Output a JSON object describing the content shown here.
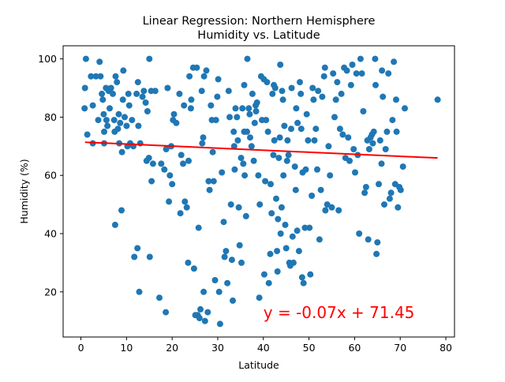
{
  "chart_data": {
    "type": "scatter",
    "title": "Linear Regression: Northern Hemisphere",
    "subtitle": "Humidity vs. Latitude",
    "xlabel": "Latitude",
    "ylabel": "Humidity (%)",
    "xlim": [
      -3.9,
      81.9
    ],
    "ylim": [
      4.5,
      104.5
    ],
    "xticks": [
      0,
      10,
      20,
      30,
      40,
      50,
      60,
      70,
      80
    ],
    "yticks": [
      20,
      40,
      60,
      80,
      100
    ],
    "grid": false,
    "marker_color": "#1f77b4",
    "line_color": "#ff0000",
    "regression": {
      "slope": -0.07,
      "intercept": 71.45,
      "x_range": [
        0.9,
        78.2
      ],
      "equation_label": "y = -0.07x + 71.45",
      "label_at": [
        40,
        11
      ]
    },
    "series": [
      {
        "points": [
          [
            1.1,
            100
          ],
          [
            0.9,
            90
          ],
          [
            0.8,
            83
          ],
          [
            1.4,
            74
          ],
          [
            2.2,
            94
          ],
          [
            2.6,
            84
          ],
          [
            2.6,
            71
          ],
          [
            3.3,
            94
          ],
          [
            3.8,
            79
          ],
          [
            4.1,
            99
          ],
          [
            4.3,
            94
          ],
          [
            4.6,
            88
          ],
          [
            4.8,
            86
          ],
          [
            5.0,
            81
          ],
          [
            5.1,
            75
          ],
          [
            5.1,
            71
          ],
          [
            5.5,
            90
          ],
          [
            5.6,
            79
          ],
          [
            5.8,
            77
          ],
          [
            6.1,
            89
          ],
          [
            6.3,
            83
          ],
          [
            6.6,
            90
          ],
          [
            7.0,
            88
          ],
          [
            7.3,
            79
          ],
          [
            7.4,
            75
          ],
          [
            7.5,
            43
          ],
          [
            7.6,
            94
          ],
          [
            7.9,
            92
          ],
          [
            8.1,
            76
          ],
          [
            8.3,
            81
          ],
          [
            8.4,
            71
          ],
          [
            8.6,
            78
          ],
          [
            8.9,
            48
          ],
          [
            9.0,
            68
          ],
          [
            9.2,
            86
          ],
          [
            9.3,
            96
          ],
          [
            9.6,
            80
          ],
          [
            10.0,
            77
          ],
          [
            10.2,
            70
          ],
          [
            10.4,
            88
          ],
          [
            10.6,
            84
          ],
          [
            10.8,
            71
          ],
          [
            11.2,
            79
          ],
          [
            11.5,
            70
          ],
          [
            11.7,
            32
          ],
          [
            12.2,
            88
          ],
          [
            12.4,
            35
          ],
          [
            12.5,
            92
          ],
          [
            12.6,
            77
          ],
          [
            12.8,
            20
          ],
          [
            13.0,
            71
          ],
          [
            13.5,
            87
          ],
          [
            13.8,
            89
          ],
          [
            14.2,
            85
          ],
          [
            14.4,
            65
          ],
          [
            14.6,
            82
          ],
          [
            14.9,
            66
          ],
          [
            15.0,
            100
          ],
          [
            15.1,
            32
          ],
          [
            15.4,
            89
          ],
          [
            15.8,
            64
          ],
          [
            16.3,
            89
          ],
          [
            17.2,
            18
          ],
          [
            17.6,
            64
          ],
          [
            18.3,
            62
          ],
          [
            18.6,
            13
          ],
          [
            18.7,
            69
          ],
          [
            19.0,
            90
          ],
          [
            19.3,
            51
          ],
          [
            19.5,
            60
          ],
          [
            19.8,
            70
          ],
          [
            20.0,
            57
          ],
          [
            20.2,
            79
          ],
          [
            20.4,
            81
          ],
          [
            20.9,
            78
          ],
          [
            21.6,
            88
          ],
          [
            21.8,
            47
          ],
          [
            22.0,
            67
          ],
          [
            22.4,
            64
          ],
          [
            22.6,
            84
          ],
          [
            22.8,
            51
          ],
          [
            23.2,
            49
          ],
          [
            23.5,
            30
          ],
          [
            23.6,
            65
          ],
          [
            23.8,
            94
          ],
          [
            24.1,
            83
          ],
          [
            24.2,
            86
          ],
          [
            24.6,
            97
          ],
          [
            24.8,
            28
          ],
          [
            25.1,
            12
          ],
          [
            25.4,
            97
          ],
          [
            25.6,
            12
          ],
          [
            25.8,
            42
          ],
          [
            26.0,
            11
          ],
          [
            26.2,
            14
          ],
          [
            26.5,
            89
          ],
          [
            26.6,
            71
          ],
          [
            26.8,
            73
          ],
          [
            27.0,
            94
          ],
          [
            27.2,
            10
          ],
          [
            27.5,
            96
          ],
          [
            27.8,
            13
          ],
          [
            28.0,
            58
          ],
          [
            28.2,
            55
          ],
          [
            28.5,
            84
          ],
          [
            28.7,
            79
          ],
          [
            28.9,
            68
          ],
          [
            29.1,
            58
          ],
          [
            29.4,
            24
          ],
          [
            29.6,
            79
          ],
          [
            29.9,
            87
          ],
          [
            30.1,
            93
          ],
          [
            30.3,
            20
          ],
          [
            30.5,
            9
          ],
          [
            30.9,
            61
          ],
          [
            31.3,
            44
          ],
          [
            31.5,
            32
          ],
          [
            31.8,
            34
          ],
          [
            32.1,
            23
          ],
          [
            32.4,
            89
          ],
          [
            32.6,
            80
          ],
          [
            32.9,
            50
          ],
          [
            33.1,
            31
          ],
          [
            33.3,
            17
          ],
          [
            33.5,
            75
          ],
          [
            33.6,
            70
          ],
          [
            33.7,
            62
          ],
          [
            33.9,
            83
          ],
          [
            34.2,
            80
          ],
          [
            34.4,
            72
          ],
          [
            34.6,
            49
          ],
          [
            34.8,
            36
          ],
          [
            35.1,
            66
          ],
          [
            35.2,
            30
          ],
          [
            35.4,
            83
          ],
          [
            35.6,
            64
          ],
          [
            35.8,
            75
          ],
          [
            35.9,
            60
          ],
          [
            36.2,
            46
          ],
          [
            36.4,
            75
          ],
          [
            36.5,
            100
          ],
          [
            36.8,
            83
          ],
          [
            37.0,
            81
          ],
          [
            37.1,
            73
          ],
          [
            37.4,
            70
          ],
          [
            37.6,
            88
          ],
          [
            37.9,
            65
          ],
          [
            38.1,
            78
          ],
          [
            38.3,
            84
          ],
          [
            38.4,
            82
          ],
          [
            38.6,
            85
          ],
          [
            38.9,
            60
          ],
          [
            39.1,
            18
          ],
          [
            39.2,
            50
          ],
          [
            39.5,
            94
          ],
          [
            39.7,
            79
          ],
          [
            40.1,
            93
          ],
          [
            40.2,
            26
          ],
          [
            40.4,
            58
          ],
          [
            40.6,
            79
          ],
          [
            40.8,
            92
          ],
          [
            41.0,
            75
          ],
          [
            41.2,
            23
          ],
          [
            41.5,
            33
          ],
          [
            41.6,
            57
          ],
          [
            41.8,
            47
          ],
          [
            42.0,
            88
          ],
          [
            42.2,
            67
          ],
          [
            42.3,
            91
          ],
          [
            42.6,
            90
          ],
          [
            42.8,
            52
          ],
          [
            43.0,
            34
          ],
          [
            43.1,
            27
          ],
          [
            43.2,
            45
          ],
          [
            43.4,
            66
          ],
          [
            43.6,
            73
          ],
          [
            43.7,
            98
          ],
          [
            43.8,
            40
          ],
          [
            44.0,
            49
          ],
          [
            44.1,
            89
          ],
          [
            44.3,
            86
          ],
          [
            44.4,
            60
          ],
          [
            44.6,
            77
          ],
          [
            44.8,
            43
          ],
          [
            45.0,
            35
          ],
          [
            45.2,
            65
          ],
          [
            45.3,
            72
          ],
          [
            45.5,
            67
          ],
          [
            45.7,
            30
          ],
          [
            45.9,
            29
          ],
          [
            46.1,
            76
          ],
          [
            46.2,
            90
          ],
          [
            46.4,
            39
          ],
          [
            46.6,
            30
          ],
          [
            46.9,
            63
          ],
          [
            47.1,
            55
          ],
          [
            47.2,
            83
          ],
          [
            47.4,
            41
          ],
          [
            47.5,
            78
          ],
          [
            47.8,
            34
          ],
          [
            48.0,
            92
          ],
          [
            48.2,
            88
          ],
          [
            48.3,
            76
          ],
          [
            48.5,
            25
          ],
          [
            48.6,
            61
          ],
          [
            48.8,
            23
          ],
          [
            49.1,
            42
          ],
          [
            49.3,
            62
          ],
          [
            49.5,
            81
          ],
          [
            49.8,
            72
          ],
          [
            50.1,
            42
          ],
          [
            50.3,
            26
          ],
          [
            50.6,
            53
          ],
          [
            50.8,
            90
          ],
          [
            51.0,
            86
          ],
          [
            51.2,
            72
          ],
          [
            51.5,
            76
          ],
          [
            51.8,
            62
          ],
          [
            52.0,
            89
          ],
          [
            52.3,
            38
          ],
          [
            52.6,
            55
          ],
          [
            52.9,
            87
          ],
          [
            53.3,
            94
          ],
          [
            53.6,
            48
          ],
          [
            54.0,
            50
          ],
          [
            54.3,
            70
          ],
          [
            54.6,
            60
          ],
          [
            55.0,
            49
          ],
          [
            55.3,
            95
          ],
          [
            55.6,
            80
          ],
          [
            55.9,
            86
          ],
          [
            56.2,
            92
          ],
          [
            56.5,
            48
          ],
          [
            56.8,
            76
          ],
          [
            57.1,
            88
          ],
          [
            57.4,
            74
          ],
          [
            57.7,
            97
          ],
          [
            58.0,
            66
          ],
          [
            58.3,
            96
          ],
          [
            58.6,
            73
          ],
          [
            58.9,
            65
          ],
          [
            59.2,
            91
          ],
          [
            59.5,
            98
          ],
          [
            59.8,
            69
          ],
          [
            60.1,
            61
          ],
          [
            60.4,
            95
          ],
          [
            60.7,
            67
          ],
          [
            61.0,
            40
          ],
          [
            61.3,
            100
          ],
          [
            61.6,
            95
          ],
          [
            61.9,
            82
          ],
          [
            62.2,
            54
          ],
          [
            62.5,
            56
          ],
          [
            62.8,
            72
          ],
          [
            63.0,
            38
          ],
          [
            63.2,
            69
          ],
          [
            63.5,
            73
          ],
          [
            63.8,
            74
          ],
          [
            64.0,
            71
          ],
          [
            64.2,
            75
          ],
          [
            64.5,
            100
          ],
          [
            64.8,
            33
          ],
          [
            65.0,
            37
          ],
          [
            65.3,
            57
          ],
          [
            65.6,
            72
          ],
          [
            65.9,
            64
          ],
          [
            66.2,
            87
          ],
          [
            66.5,
            50
          ],
          [
            66.8,
            69
          ],
          [
            67.1,
            75
          ],
          [
            67.4,
            95
          ],
          [
            67.7,
            52
          ],
          [
            68.0,
            54
          ],
          [
            68.3,
            79
          ],
          [
            68.6,
            99
          ],
          [
            68.9,
            57
          ],
          [
            69.2,
            75
          ],
          [
            69.5,
            49
          ],
          [
            69.8,
            56
          ],
          [
            70.1,
            55
          ],
          [
            70.6,
            63
          ],
          [
            71.0,
            83
          ],
          [
            78.2,
            86
          ],
          [
            15.5,
            58
          ],
          [
            26.9,
            20
          ],
          [
            35.8,
            91
          ],
          [
            42.4,
            72
          ],
          [
            53.5,
            97
          ],
          [
            64.6,
            91
          ],
          [
            66.0,
            96
          ],
          [
            69.1,
            86
          ]
        ]
      }
    ]
  }
}
